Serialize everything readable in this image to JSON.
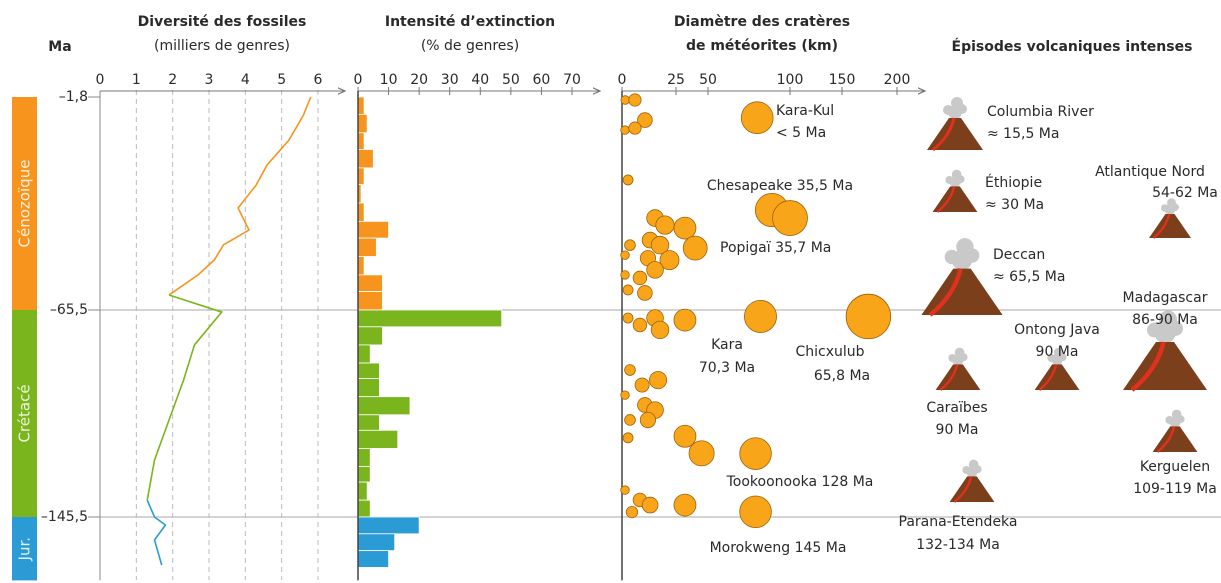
{
  "chart_data": {
    "type": "panels",
    "y_axis": {
      "title": "Ma",
      "ylim": [
        -1.8,
        -170
      ],
      "yticks": [
        {
          "value": -1.8,
          "label": "–1,8"
        },
        {
          "value": -65.5,
          "label": "–65,5"
        },
        {
          "value": -145.5,
          "label": "–145,5"
        }
      ]
    },
    "eras": [
      {
        "name": "Cénozoïque",
        "color": "#f7941d"
      },
      {
        "name": "Crétacé",
        "color": "#7ab51d"
      },
      {
        "name": "Jur.",
        "color": "#2b9bd6"
      }
    ],
    "diversity": {
      "title": "Diversité des fossiles",
      "subtitle": "(milliers de genres)",
      "xlim": [
        0,
        6
      ],
      "xticks": [
        0,
        1,
        2,
        3,
        4,
        5,
        6
      ],
      "grid": true,
      "ages": [
        -1.8,
        -7.2,
        -14.7,
        -22.1,
        -28.1,
        -35,
        -41.6,
        -46,
        -50.5,
        -55,
        -61,
        -66.3,
        -79,
        -92.6,
        -108,
        -123.5,
        -139,
        -145.5,
        -148.6,
        -154.4,
        -164.1
      ],
      "values": [
        5.8,
        5.6,
        5.2,
        4.6,
        4.3,
        3.8,
        4.1,
        3.4,
        3.15,
        2.7,
        1.9,
        3.35,
        2.6,
        2.3,
        1.9,
        1.5,
        1.3,
        1.5,
        1.8,
        1.5,
        1.7
      ]
    },
    "extinction": {
      "title": "Intensité d’extinction",
      "subtitle": "(% de genres)",
      "xlim": [
        0,
        70
      ],
      "xticks": [
        0,
        10,
        20,
        30,
        40,
        50,
        60,
        70
      ],
      "bins": [
        -1.8,
        -7,
        -12.5,
        -17.5,
        -23,
        -28,
        -33.5,
        -39,
        -44,
        -49.5,
        -55,
        -60,
        -65.5,
        -72,
        -79,
        -86,
        -92,
        -99,
        -106,
        -112,
        -119,
        -126,
        -132,
        -139,
        -145.5,
        -152,
        -158.5,
        -165
      ],
      "values": [
        2,
        3,
        2,
        5,
        2,
        1,
        2,
        10,
        6,
        2,
        8,
        8,
        47,
        8,
        4,
        7,
        7,
        17,
        7,
        13,
        4,
        4,
        3,
        4,
        20,
        12,
        10
      ]
    },
    "craters": {
      "title": "Diamètre des cratères",
      "subtitle": "de météorites (km)",
      "color": "#f9a51a",
      "xlim": [
        0,
        200
      ],
      "xticks": [
        0,
        25,
        50,
        100,
        150,
        200
      ],
      "ages": [
        -2.7,
        -2.7,
        -8.7,
        -11.7,
        -11.1,
        -26.6,
        -38,
        -40.1,
        -46.1,
        -44.6,
        -46.1,
        -41,
        -49.1,
        -50,
        -50.6,
        -47,
        -55,
        -55.9,
        -53.5,
        -59.5,
        -60.4,
        -68.6,
        -71.3,
        -68.6,
        -69.4,
        -73.2,
        -88.7,
        -94.5,
        -92.6,
        -98.4,
        -102.2,
        -104.2,
        -108,
        -108,
        -114.9,
        -114.3,
        -120.9,
        -135.1,
        -138.9,
        -140.9,
        -143.6,
        -140.9
      ],
      "values": [
        1.5,
        6,
        10.6,
        1.4,
        6,
        2.8,
        15.3,
        19.9,
        3.7,
        13,
        17.6,
        32,
        1.4,
        12,
        22,
        40,
        1.4,
        8.3,
        15.3,
        2.8,
        10.6,
        2.8,
        8.3,
        15.3,
        32,
        17.6,
        3.7,
        9.3,
        16.7,
        1.4,
        10.6,
        15.3,
        3.7,
        12,
        2.8,
        32,
        45,
        1.4,
        8.3,
        13,
        4.6,
        32
      ],
      "named": [
        {
          "label": [
            "Kara-Kul",
            "< 5 Ma"
          ],
          "age": -8,
          "value": 80
        },
        {
          "label": [
            "Chesapeake 35,5 Ma"
          ],
          "age": -35.6,
          "value": 89
        },
        {
          "label": [
            "Popigaï 35,7 Ma"
          ],
          "age": -38,
          "value": 100
        },
        {
          "label": [
            "Kara",
            "70,3 Ma"
          ],
          "age": -68,
          "value": 82
        },
        {
          "label": [
            "Chicxulub",
            "65,8 Ma"
          ],
          "age": -68,
          "value": 174
        },
        {
          "label": [
            "Tookoonooka 128 Ma"
          ],
          "age": -121,
          "value": 79
        },
        {
          "label": [
            "Morokweng 145 Ma"
          ],
          "age": -143.5,
          "value": 79
        }
      ]
    },
    "volcanism": {
      "title": "Épisodes volcaniques intenses",
      "episodes": [
        {
          "label": [
            "Columbia River",
            "≈ 15,5 Ma"
          ]
        },
        {
          "label": [
            "Éthiopie",
            "≈ 30 Ma"
          ]
        },
        {
          "label": [
            "Deccan",
            "≈ 65,5 Ma"
          ]
        },
        {
          "label": [
            "Atlantique Nord",
            "54-62 Ma"
          ]
        },
        {
          "label": [
            "Madagascar",
            "86-90 Ma"
          ]
        },
        {
          "label": [
            "Ontong Java",
            "90 Ma"
          ]
        },
        {
          "label": [
            "Caraïbes",
            "90 Ma"
          ]
        },
        {
          "label": [
            "Kerguelen",
            "109-119 Ma"
          ]
        },
        {
          "label": [
            "Parana-Etendeka",
            "132-134 Ma"
          ]
        }
      ]
    }
  }
}
